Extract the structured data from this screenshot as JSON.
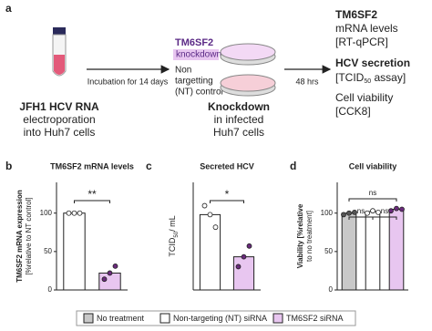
{
  "panel_a": {
    "label": "a",
    "step1": [
      "JFH1 HCV RNA",
      "electroporation",
      "into Huh7 cells"
    ],
    "arrow1": "Incubation for 14 days",
    "knockdown_title": "TM6SF2",
    "knockdown_sub": "knockdown",
    "control": [
      "Non",
      "targetting",
      "(NT) control"
    ],
    "step2": [
      "Knockdown",
      "in infected",
      "Huh7 cells"
    ],
    "arrow2": "48 hrs",
    "readout1": [
      "TM6SF2",
      "mRNA levels",
      "[RT-qPCR]"
    ],
    "readout2_title": "HCV secretion",
    "readout2_assay": [
      "[TCID",
      "50",
      " assay]"
    ],
    "readout3": [
      "Cell viability",
      "[CCK8]"
    ]
  },
  "chart_data": [
    {
      "type": "bar",
      "label": "b",
      "title": "TM6SF2 mRNA levels",
      "ylabel": [
        "TM6SF2 mRNA expression",
        "[%relative to NT control]"
      ],
      "categories": [
        null,
        null
      ],
      "values": [
        100,
        22
      ],
      "colors": [
        "#ffffff",
        "#e8c6f0"
      ],
      "points": [
        [
          100,
          100,
          100
        ],
        [
          14,
          22,
          31
        ]
      ],
      "point_colors": [
        "#ffffff",
        "#6a2a7c"
      ],
      "ylim": [
        0,
        140
      ],
      "yticks": [
        0,
        50,
        100
      ],
      "annotations": [
        "**"
      ]
    },
    {
      "type": "bar",
      "label": "c",
      "title": "Secreted HCV",
      "ylabel": [
        "TCID",
        "50",
        "/ mL"
      ],
      "categories": [
        null,
        null
      ],
      "values": [
        420,
        185
      ],
      "colors": [
        "#ffffff",
        "#e8c6f0"
      ],
      "points": [
        [
          470,
          420,
          350
        ],
        [
          130,
          185,
          245
        ]
      ],
      "point_colors": [
        "#ffffff",
        "#6a2a7c"
      ],
      "ylim": [
        0,
        600
      ],
      "annotations": [
        "*"
      ]
    },
    {
      "type": "bar",
      "label": "d",
      "title": "Cell viability",
      "ylabel": [
        "Viability [%relative",
        "to no treatment]"
      ],
      "categories": [
        null,
        null,
        null
      ],
      "values": [
        100,
        102,
        105
      ],
      "colors": [
        "#c8c8c8",
        "#ffffff",
        "#e8c6f0"
      ],
      "points": [
        [
          98,
          100,
          101
        ],
        [
          100,
          103,
          101
        ],
        [
          103,
          106,
          105
        ]
      ],
      "point_colors": [
        "#555555",
        "#ffffff",
        "#6a2a7c"
      ],
      "ylim": [
        0,
        140
      ],
      "yticks": [
        0,
        50,
        100
      ],
      "annotations": [
        "ns",
        "ns",
        "ns"
      ]
    }
  ],
  "legend": [
    {
      "name": "No treatment",
      "color": "#c8c8c8"
    },
    {
      "name": "Non-targeting (NT) siRNA",
      "color": "#ffffff"
    },
    {
      "name": "TM6SF2 siRNA",
      "color": "#e8c6f0"
    }
  ]
}
